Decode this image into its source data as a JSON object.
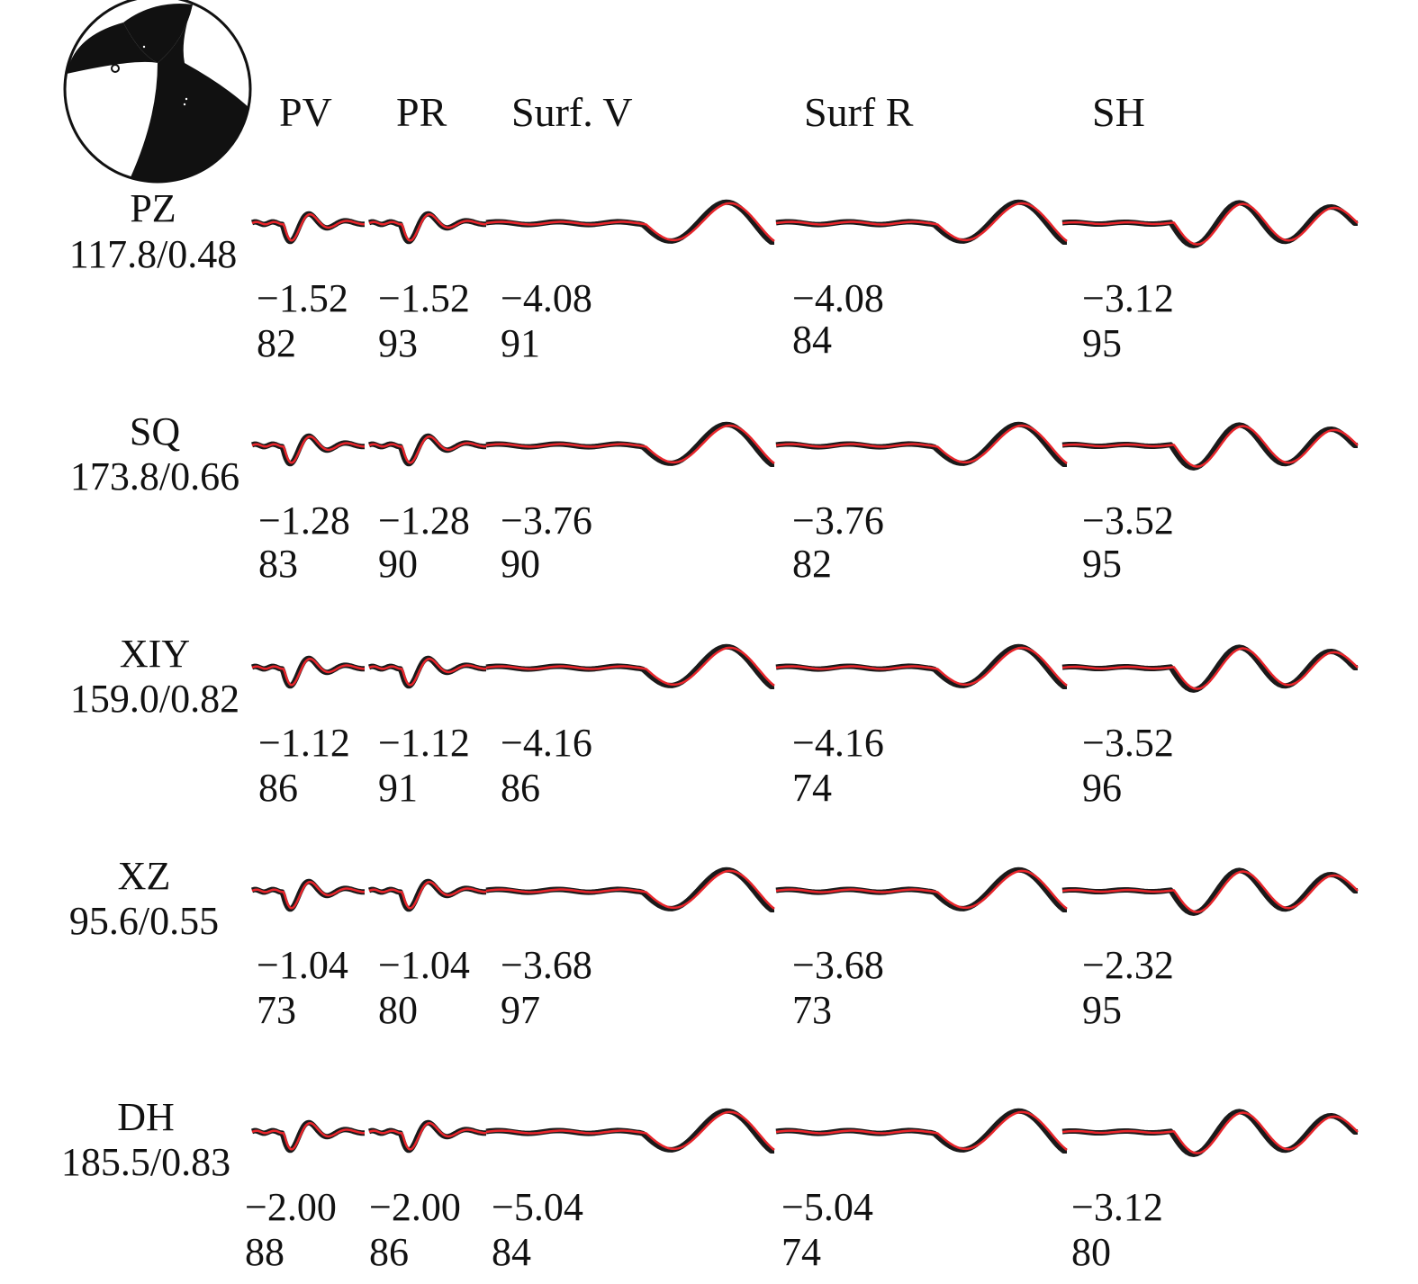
{
  "colors": {
    "observed": "#1a1a1a",
    "synthetic": "#e8252b",
    "beachball": "#111111"
  },
  "beachball": {
    "icon": "focal-mechanism-beachball"
  },
  "headers": [
    "PV",
    "PR",
    "Surf. V",
    "Surf R",
    "SH"
  ],
  "stations": [
    {
      "name": "PZ",
      "info": "117.8/0.48",
      "comps": [
        {
          "shift": "−1.52",
          "cc": "82"
        },
        {
          "shift": "−1.52",
          "cc": "93"
        },
        {
          "shift": "−4.08",
          "cc": "91"
        },
        {
          "shift": "−4.08",
          "cc": "84"
        },
        {
          "shift": "−3.12",
          "cc": "95"
        }
      ]
    },
    {
      "name": "SQ",
      "info": "173.8/0.66",
      "comps": [
        {
          "shift": "−1.28",
          "cc": "83"
        },
        {
          "shift": "−1.28",
          "cc": "90"
        },
        {
          "shift": "−3.76",
          "cc": "90"
        },
        {
          "shift": "−3.76",
          "cc": "82"
        },
        {
          "shift": "−3.52",
          "cc": "95"
        }
      ]
    },
    {
      "name": "XIY",
      "info": "159.0/0.82",
      "comps": [
        {
          "shift": "−1.12",
          "cc": "86"
        },
        {
          "shift": "−1.12",
          "cc": "91"
        },
        {
          "shift": "−4.16",
          "cc": "86"
        },
        {
          "shift": "−4.16",
          "cc": "74"
        },
        {
          "shift": "−3.52",
          "cc": "96"
        }
      ]
    },
    {
      "name": "XZ",
      "info": "95.6/0.55",
      "comps": [
        {
          "shift": "−1.04",
          "cc": "73"
        },
        {
          "shift": "−1.04",
          "cc": "80"
        },
        {
          "shift": "−3.68",
          "cc": "97"
        },
        {
          "shift": "−3.68",
          "cc": "73"
        },
        {
          "shift": "−2.32",
          "cc": "95"
        }
      ]
    },
    {
      "name": "DH",
      "info": "185.5/0.83",
      "comps": [
        {
          "shift": "−2.00",
          "cc": "88"
        },
        {
          "shift": "−2.00",
          "cc": "86"
        },
        {
          "shift": "−5.04",
          "cc": "84"
        },
        {
          "shift": "−5.04",
          "cc": "74"
        },
        {
          "shift": "−3.12",
          "cc": "80"
        }
      ]
    }
  ]
}
